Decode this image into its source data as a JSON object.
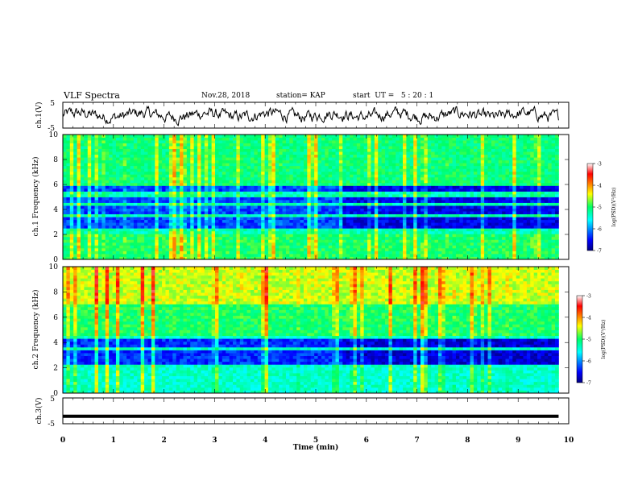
{
  "header": {
    "title": "VLF Spectra",
    "date": "Nov.28, 2018",
    "station": "station= KAP",
    "start": "start  UT =   5 : 20 : 1"
  },
  "colors": {
    "spectrum_low": "#00007f",
    "spectrum_high": "#ff0000",
    "trace": "#000000"
  },
  "chart_data": [
    {
      "type": "line",
      "panel": "ch1_waveform",
      "ylabel": "ch.1(V)",
      "ylim": [
        -5,
        5
      ],
      "y_ticks": [
        "5",
        "-5"
      ],
      "x_range_min": [
        0,
        9.8
      ],
      "typical_value_V": [
        -3,
        3
      ]
    },
    {
      "type": "heatmap",
      "panel": "ch1_spectrogram",
      "ylabel": "ch.1  Frequency (kHz)",
      "ylim": [
        0,
        10
      ],
      "y_ticks": [
        "0",
        "2",
        "4",
        "6",
        "8",
        "10"
      ],
      "x_range_min": [
        0,
        9.8
      ],
      "colorbar_label": "log(PSD)(V²/Hz)",
      "colorbar_ticks": [
        "-3",
        "-4",
        "-5",
        "-6",
        "-7"
      ],
      "colorbar_range": [
        -7,
        -3
      ],
      "quiet_bands_kHz": [
        [
          2.5,
          3.3
        ],
        [
          3.6,
          4.3
        ],
        [
          4.6,
          5.0
        ],
        [
          5.4,
          6.0
        ]
      ]
    },
    {
      "type": "heatmap",
      "panel": "ch2_spectrogram",
      "ylabel": "ch.2  Frequency (kHz)",
      "ylim": [
        0,
        10
      ],
      "y_ticks": [
        "0",
        "2",
        "4",
        "6",
        "8",
        "10"
      ],
      "x_range_min": [
        0,
        9.8
      ],
      "colorbar_label": "log(PSD)(V²/Hz)",
      "colorbar_ticks": [
        "-3",
        "-4",
        "-5",
        "-6",
        "-7"
      ],
      "colorbar_range": [
        -7,
        -3
      ],
      "quiet_bands_kHz": [
        [
          2.2,
          3.4
        ],
        [
          3.7,
          4.3
        ]
      ]
    },
    {
      "type": "line",
      "panel": "ch3_waveform",
      "ylabel": "ch.3(V)",
      "ylim": [
        -5,
        5
      ],
      "y_ticks": [
        "5",
        "-5"
      ],
      "x_range_min": [
        0,
        9.8
      ],
      "constant_value_V": -2.1
    }
  ],
  "x_axis": {
    "label": "Time  (min)",
    "ticks": [
      "0",
      "1",
      "2",
      "3",
      "4",
      "5",
      "6",
      "7",
      "8",
      "9",
      "10"
    ],
    "range": [
      0,
      10
    ]
  }
}
